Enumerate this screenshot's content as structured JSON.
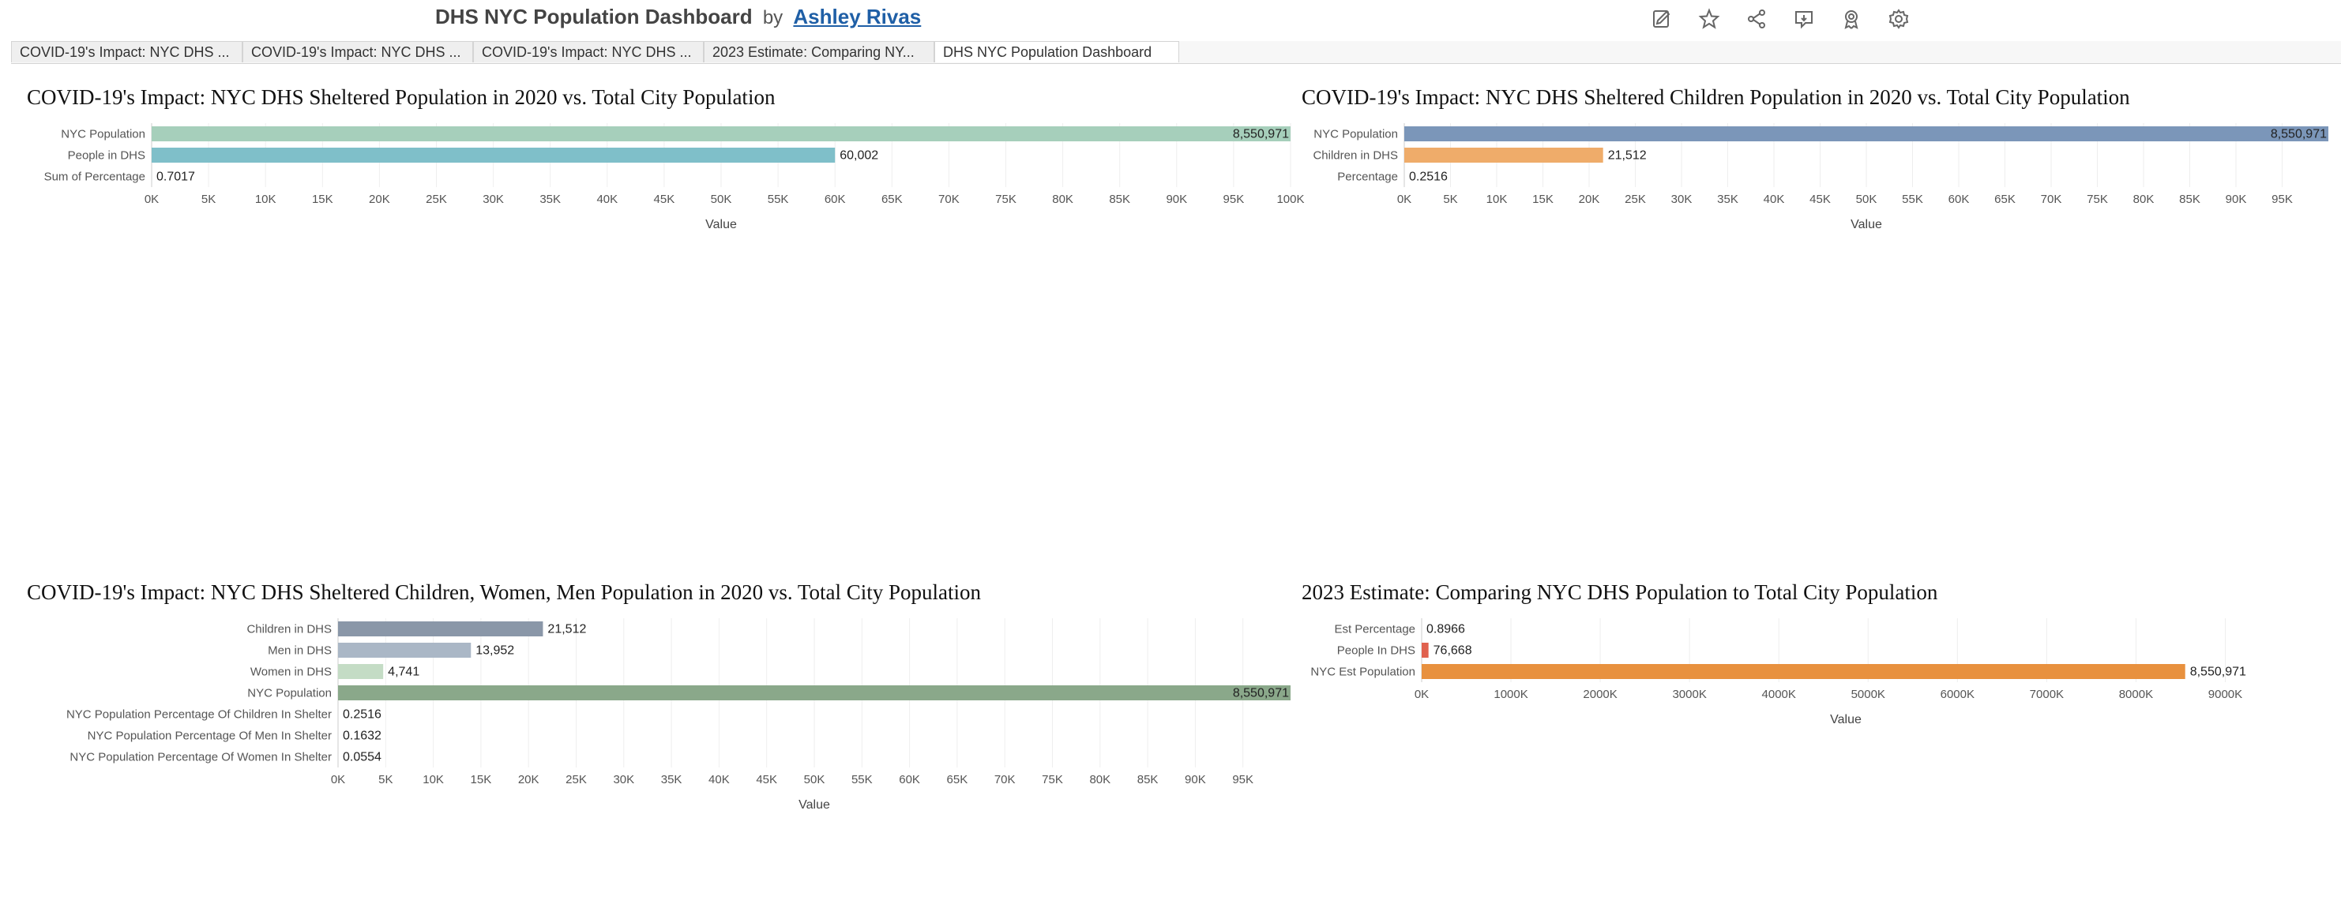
{
  "header": {
    "title": "DHS NYC Population Dashboard",
    "by": "by",
    "author": "Ashley Rivas"
  },
  "toolbar": {
    "icons": [
      "edit-icon",
      "star-icon",
      "share-icon",
      "comment-icon",
      "badge-icon",
      "gear-icon"
    ]
  },
  "tabs": [
    {
      "label": "COVID-19's Impact: NYC DHS ...",
      "active": false
    },
    {
      "label": "COVID-19's Impact: NYC DHS ...",
      "active": false
    },
    {
      "label": "COVID-19's Impact: NYC DHS ...",
      "active": false
    },
    {
      "label": "2023 Estimate: Comparing NY...",
      "active": false
    },
    {
      "label": "DHS NYC Population Dashboard",
      "active": true
    }
  ],
  "chart_data": [
    {
      "type": "bar",
      "orientation": "horizontal",
      "title": "COVID-19's Impact: NYC DHS Sheltered Population in 2020 vs. Total City Population",
      "xlabel": "Value",
      "categories": [
        "NYC Population",
        "People in DHS",
        "Sum of Percentage"
      ],
      "values": [
        8550971,
        60002,
        0.7017
      ],
      "value_labels": [
        "8,550,971",
        "60,002",
        "0.7017"
      ],
      "colors": [
        "#a6cfbb",
        "#7fbfc9",
        "#7fbfc9"
      ],
      "xlim": [
        0,
        100000
      ],
      "ticks": [
        "0K",
        "5K",
        "10K",
        "15K",
        "20K",
        "25K",
        "30K",
        "35K",
        "40K",
        "45K",
        "50K",
        "55K",
        "60K",
        "65K",
        "70K",
        "75K",
        "80K",
        "85K",
        "90K",
        "95K",
        "100K"
      ],
      "grid": true
    },
    {
      "type": "bar",
      "orientation": "horizontal",
      "title": "COVID-19's Impact: NYC DHS Sheltered Children Population in 2020 vs. Total City Population",
      "xlabel": "Value",
      "categories": [
        "NYC Population",
        "Children in DHS",
        "Percentage"
      ],
      "values": [
        8550971,
        21512,
        0.2516
      ],
      "value_labels": [
        "8,550,971",
        "21,512",
        "0.2516"
      ],
      "colors": [
        "#7b96b9",
        "#efac6a",
        "#efac6a"
      ],
      "xlim": [
        0,
        100000
      ],
      "ticks": [
        "0K",
        "5K",
        "10K",
        "15K",
        "20K",
        "25K",
        "30K",
        "35K",
        "40K",
        "45K",
        "50K",
        "55K",
        "60K",
        "65K",
        "70K",
        "75K",
        "80K",
        "85K",
        "90K",
        "95K"
      ],
      "grid": true
    },
    {
      "type": "bar",
      "orientation": "horizontal",
      "title": "COVID-19's Impact: NYC DHS Sheltered Children, Women, Men Population in 2020 vs. Total City Population",
      "xlabel": "Value",
      "categories": [
        "Children in DHS",
        "Men in DHS",
        "Women in DHS",
        "NYC Population",
        "NYC Population Percentage Of Children In Shelter",
        "NYC Population Percentage Of Men In Shelter",
        "NYC Population Percentage Of Women In Shelter"
      ],
      "values": [
        21512,
        13952,
        4741,
        8550971,
        0.2516,
        0.1632,
        0.0554
      ],
      "value_labels": [
        "21,512",
        "13,952",
        "4,741",
        "8,550,971",
        "0.2516",
        "0.1632",
        "0.0554"
      ],
      "colors": [
        "#8a97a8",
        "#aab7c6",
        "#c4dcc5",
        "#8aa88a",
        "#8aa88a",
        "#8aa88a",
        "#8aa88a"
      ],
      "xlim": [
        0,
        100000
      ],
      "ticks": [
        "0K",
        "5K",
        "10K",
        "15K",
        "20K",
        "25K",
        "30K",
        "35K",
        "40K",
        "45K",
        "50K",
        "55K",
        "60K",
        "65K",
        "70K",
        "75K",
        "80K",
        "85K",
        "90K",
        "95K"
      ],
      "grid": true
    },
    {
      "type": "bar",
      "orientation": "horizontal",
      "title": "2023 Estimate: Comparing NYC DHS Population to Total City Population",
      "xlabel": "Value",
      "categories": [
        "Est Percentage",
        "People In DHS",
        "NYC Est Population"
      ],
      "values": [
        0.8966,
        76668,
        8550971
      ],
      "value_labels": [
        "0.8966",
        "76,668",
        "8,550,971"
      ],
      "colors": [
        "#e0614e",
        "#e0614e",
        "#e8913e"
      ],
      "xlim": [
        0,
        9500000
      ],
      "ticks": [
        "0K",
        "1000K",
        "2000K",
        "3000K",
        "4000K",
        "5000K",
        "6000K",
        "7000K",
        "8000K",
        "9000K"
      ],
      "tick_values": [
        0,
        1000000,
        2000000,
        3000000,
        4000000,
        5000000,
        6000000,
        7000000,
        8000000,
        9000000
      ],
      "grid": true
    }
  ]
}
